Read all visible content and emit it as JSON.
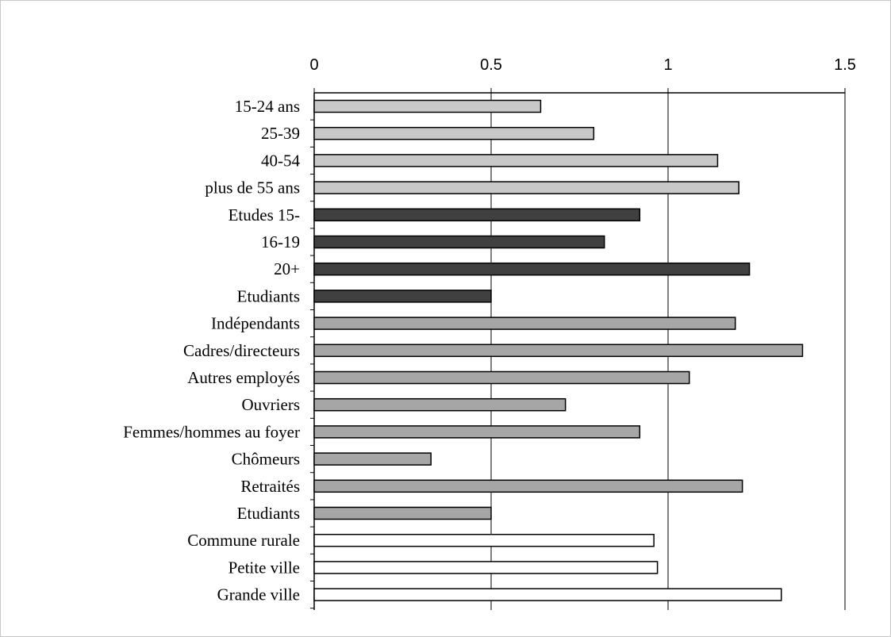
{
  "chart_data": {
    "type": "bar",
    "orientation": "horizontal",
    "xlim": [
      0,
      1.5
    ],
    "x_ticks": [
      "0",
      "0.5",
      "1",
      "1.5"
    ],
    "x_tick_values": [
      0,
      0.5,
      1,
      1.5
    ],
    "axis_position": "top",
    "grid": "vertical lines at ticks",
    "categories": [
      "15-24 ans",
      "25-39",
      "40-54",
      "plus de 55 ans",
      "Etudes 15-",
      "16-19",
      "20+",
      "Etudiants",
      "Indépendants",
      "Cadres/directeurs",
      "Autres employés",
      "Ouvriers",
      "Femmes/hommes au foyer",
      "Chômeurs",
      "Retraités",
      "Etudiants",
      "Commune rurale",
      "Petite ville",
      "Grande ville"
    ],
    "values": [
      0.64,
      0.79,
      1.14,
      1.2,
      0.92,
      0.82,
      1.23,
      0.5,
      1.19,
      1.38,
      1.06,
      0.71,
      0.92,
      0.33,
      1.21,
      0.5,
      0.96,
      0.97,
      1.32
    ],
    "bar_colors": [
      "#c8c8c8",
      "#c8c8c8",
      "#c8c8c8",
      "#c8c8c8",
      "#404040",
      "#404040",
      "#404040",
      "#404040",
      "#a6a6a6",
      "#a6a6a6",
      "#a6a6a6",
      "#a6a6a6",
      "#a6a6a6",
      "#a6a6a6",
      "#a6a6a6",
      "#a6a6a6",
      "#ffffff",
      "#ffffff",
      "#ffffff"
    ]
  }
}
